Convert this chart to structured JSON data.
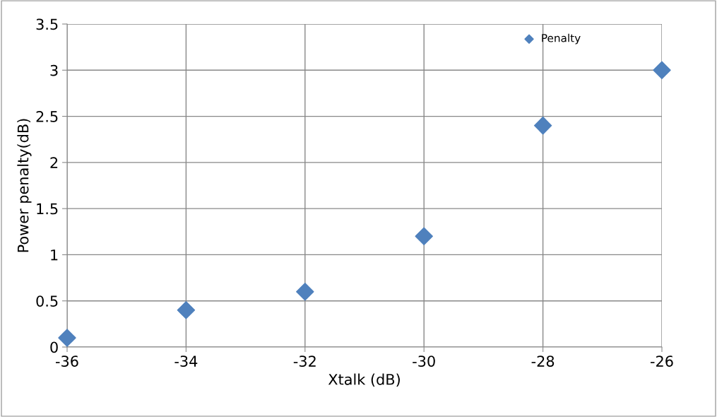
{
  "chart_data": {
    "type": "scatter",
    "xlabel": "Xtalk (dB)",
    "ylabel": "Power penalty(dB)",
    "x": [
      -36,
      -34,
      -32,
      -30,
      -28,
      -26
    ],
    "series": [
      {
        "name": "Penalty",
        "color": "#4f81bd",
        "values": [
          0.1,
          0.4,
          0.6,
          1.2,
          2.4,
          3.0
        ]
      }
    ],
    "xlim": [
      -36,
      -26
    ],
    "xticks": [
      -36,
      -34,
      -32,
      -30,
      -28,
      -26
    ],
    "ylim": [
      0,
      3.5
    ],
    "yticks": [
      0,
      0.5,
      1,
      1.5,
      2,
      2.5,
      3,
      3.5
    ],
    "grid": true,
    "legend": "top right",
    "marker": "diamond"
  }
}
